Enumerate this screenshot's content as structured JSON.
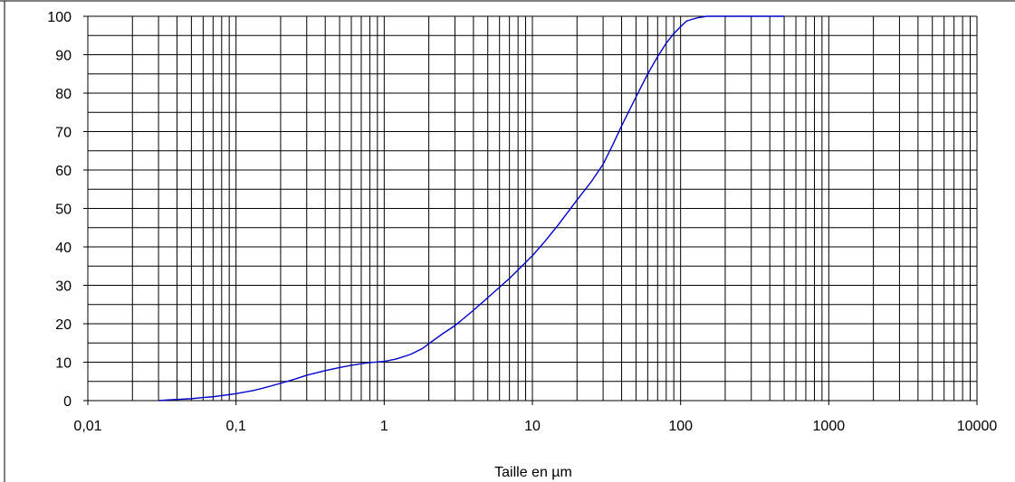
{
  "chart_data": {
    "type": "line",
    "title": "",
    "xlabel": "Taille en µm",
    "ylabel": "",
    "x_scale": "log",
    "xlim": [
      0.01,
      10000
    ],
    "ylim": [
      0,
      100
    ],
    "grid": true,
    "x_tick_labels": [
      "0,01",
      "0,1",
      "1",
      "10",
      "100",
      "1000",
      "10000"
    ],
    "x_tick_values": [
      0.01,
      0.1,
      1,
      10,
      100,
      1000,
      10000
    ],
    "y_tick_labels": [
      "0",
      "10",
      "20",
      "30",
      "40",
      "50",
      "60",
      "70",
      "80",
      "90",
      "100"
    ],
    "y_tick_values": [
      0,
      10,
      20,
      30,
      40,
      50,
      60,
      70,
      80,
      90,
      100
    ],
    "series": [
      {
        "color": "#0000cc",
        "x": [
          0.03,
          0.035,
          0.04,
          0.05,
          0.06,
          0.07,
          0.08,
          0.1,
          0.13,
          0.15,
          0.2,
          0.25,
          0.3,
          0.4,
          0.5,
          0.6,
          0.7,
          0.8,
          1,
          1.2,
          1.5,
          1.8,
          2,
          2.5,
          3,
          4,
          5,
          6,
          7,
          8,
          10,
          12,
          15,
          20,
          25,
          30,
          35,
          40,
          50,
          60,
          70,
          80,
          90,
          100,
          110,
          130,
          150,
          200,
          300,
          400,
          500
        ],
        "y": [
          0,
          0.2,
          0.3,
          0.5,
          0.8,
          1.0,
          1.3,
          1.8,
          2.6,
          3.2,
          4.5,
          5.6,
          6.6,
          7.8,
          8.6,
          9.2,
          9.6,
          9.9,
          10.2,
          10.8,
          12,
          13.5,
          14.8,
          17.5,
          19.5,
          23.5,
          26.8,
          29.5,
          31.8,
          34,
          37.7,
          41.2,
          45.8,
          52.2,
          57,
          61.5,
          66.7,
          71.5,
          79,
          85,
          89.5,
          93,
          95.5,
          97.3,
          98.8,
          99.6,
          100,
          100,
          100,
          100,
          100
        ]
      }
    ]
  }
}
